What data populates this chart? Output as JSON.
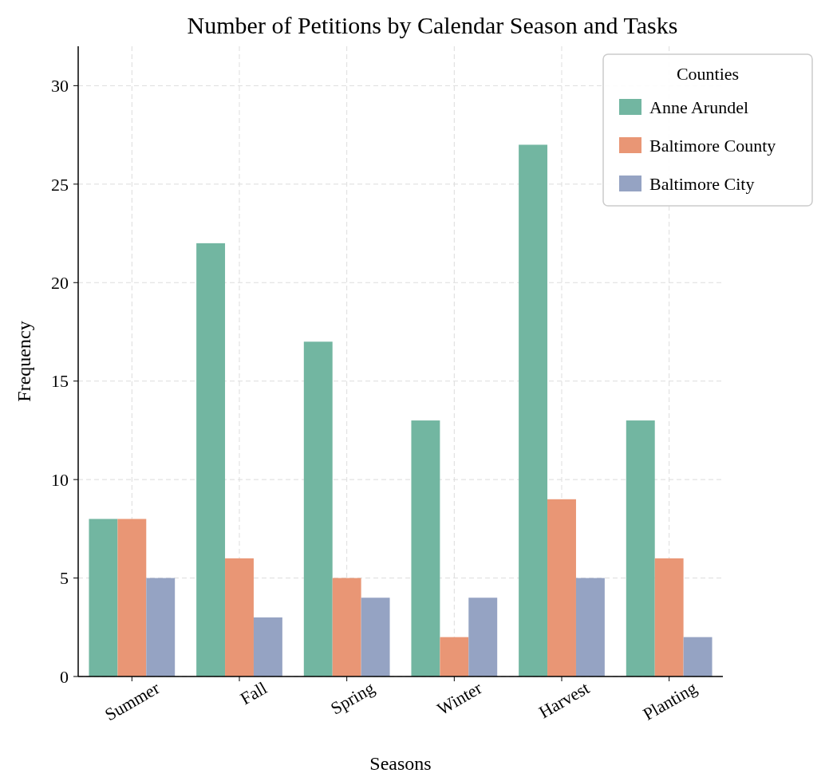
{
  "chart_data": {
    "type": "bar",
    "title": "Number of Petitions by Calendar Season and Tasks",
    "xlabel": "Seasons",
    "ylabel": "Frequency",
    "legend_title": "Counties",
    "categories": [
      "Summer",
      "Fall",
      "Spring",
      "Winter",
      "Harvest",
      "Planting"
    ],
    "series": [
      {
        "name": "Anne Arundel",
        "color": "#72b6a1",
        "values": [
          8,
          22,
          17,
          13,
          27,
          13
        ]
      },
      {
        "name": "Baltimore County",
        "color": "#e99675",
        "values": [
          8,
          6,
          5,
          2,
          9,
          6
        ]
      },
      {
        "name": "Baltimore City",
        "color": "#95a3c3",
        "values": [
          5,
          3,
          4,
          4,
          5,
          2
        ]
      }
    ],
    "ylim": [
      0,
      32
    ],
    "yticks": [
      0,
      5,
      10,
      15,
      20,
      25,
      30
    ],
    "grid": true,
    "legend": "top right"
  }
}
